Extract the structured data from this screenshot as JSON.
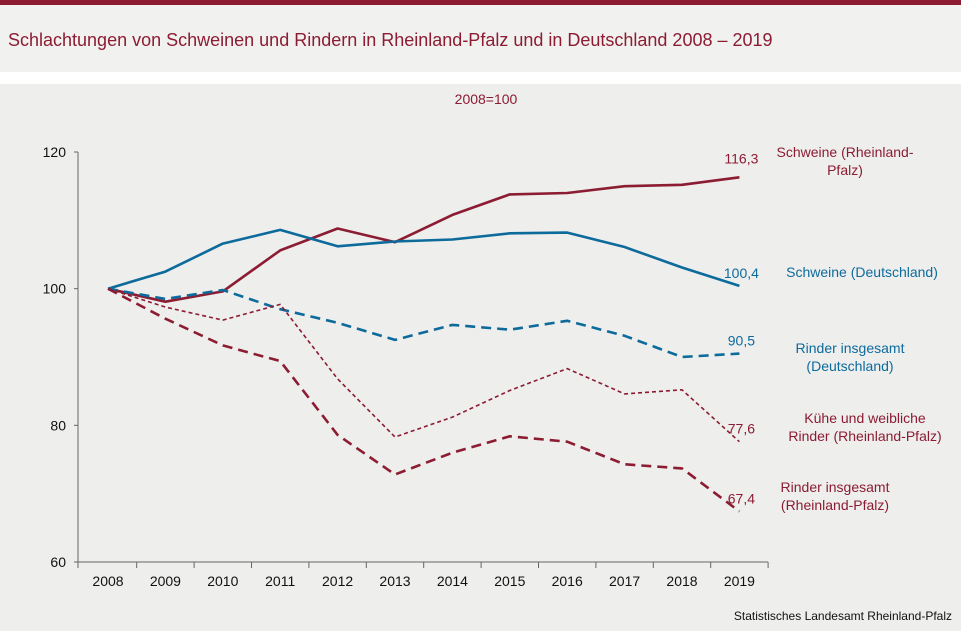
{
  "title": "Schlachtungen von Schweinen und Rindern in Rheinland-Pfalz und in Deutschland 2008 – 2019",
  "source": "Statistisches Landesamt Rheinland-Pfalz",
  "chart_data": {
    "type": "line",
    "subtitle": "2008=100",
    "xlabel": "",
    "ylabel": "",
    "x": [
      2008,
      2009,
      2010,
      2011,
      2012,
      2013,
      2014,
      2015,
      2016,
      2017,
      2018,
      2019
    ],
    "ylim": [
      60,
      120
    ],
    "yticks": [
      60,
      80,
      100,
      120
    ],
    "grid": false,
    "series": [
      {
        "name": "Schweine (Rheinland-Pfalz)",
        "color": "#8c1c32",
        "style": "solid",
        "values": [
          100,
          98.1,
          99.6,
          105.6,
          108.8,
          106.8,
          110.8,
          113.8,
          114.0,
          115.0,
          115.2,
          116.3
        ],
        "end_label": "116,3"
      },
      {
        "name": "Schweine (Deutschland)",
        "color": "#0d6b9c",
        "style": "solid",
        "values": [
          100,
          102.5,
          106.6,
          108.6,
          106.2,
          106.9,
          107.2,
          108.1,
          108.2,
          106.1,
          103.1,
          100.4
        ],
        "end_label": "100,4"
      },
      {
        "name": "Rinder insgesamt (Deutschland)",
        "color": "#0d6b9c",
        "style": "dashed",
        "values": [
          100,
          98.5,
          99.8,
          97.0,
          95.0,
          92.5,
          94.7,
          94.0,
          95.3,
          93.1,
          90.0,
          90.5
        ],
        "end_label": "90,5"
      },
      {
        "name": "Kühe und weibliche Rinder (Rheinland-Pfalz)",
        "color": "#8c1c32",
        "style": "dotted",
        "values": [
          100,
          97.3,
          95.4,
          97.7,
          86.8,
          78.3,
          81.2,
          85.1,
          88.3,
          84.6,
          85.2,
          77.6
        ],
        "end_label": "77,6"
      },
      {
        "name": "Rinder insgesamt (Rheinland-Pfalz)",
        "color": "#8c1c32",
        "style": "dashed",
        "values": [
          100,
          95.6,
          91.7,
          89.4,
          78.6,
          72.8,
          76.0,
          78.4,
          77.6,
          74.3,
          73.7,
          67.4
        ],
        "end_label": "67,4"
      }
    ],
    "legend_labels": [
      {
        "series": 0,
        "lines": [
          "Schweine (Rheinland-",
          "Pfalz)"
        ]
      },
      {
        "series": 1,
        "lines": [
          "Schweine (Deutschland)"
        ]
      },
      {
        "series": 2,
        "lines": [
          "Rinder insgesamt",
          "(Deutschland)"
        ]
      },
      {
        "series": 3,
        "lines": [
          "Kühe und weibliche",
          "Rinder (Rheinland-Pfalz)"
        ]
      },
      {
        "series": 4,
        "lines": [
          "Rinder insgesamt",
          "(Rheinland-Pfalz)"
        ]
      }
    ]
  }
}
